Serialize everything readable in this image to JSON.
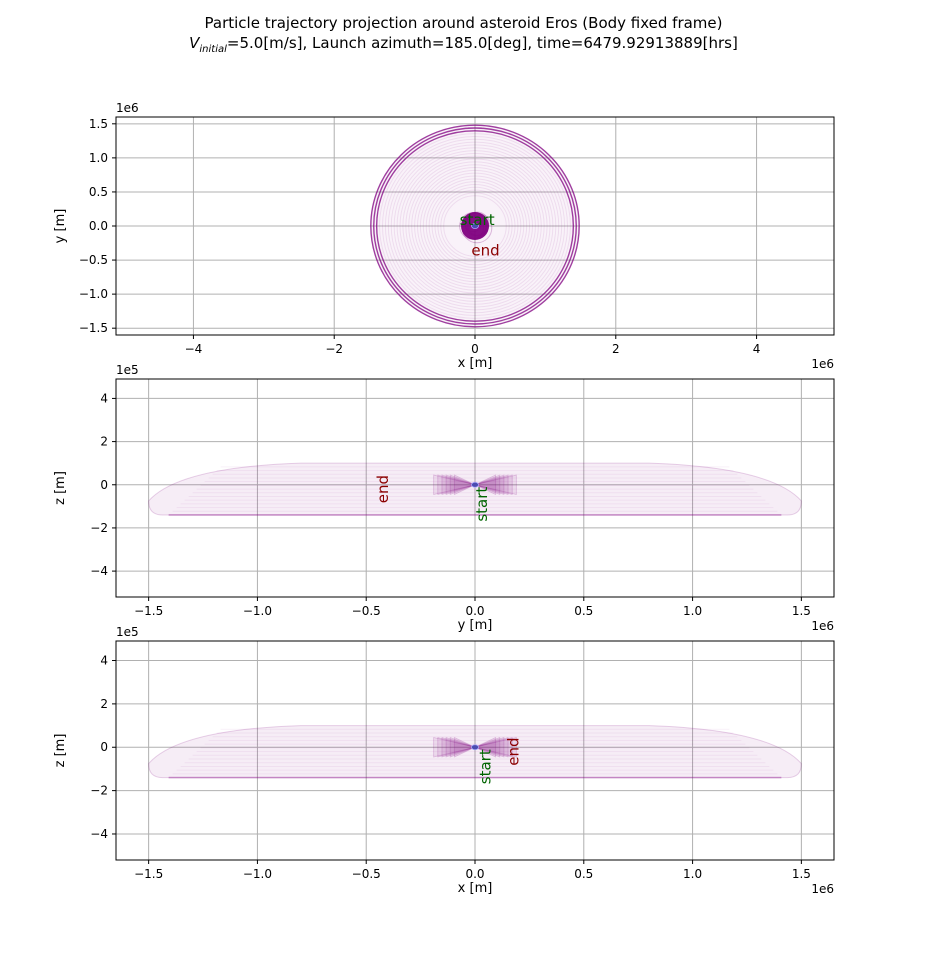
{
  "figure": {
    "title_line1": "Particle trajectory projection around asteroid Eros (Body fixed frame)",
    "title_v_symbol": "V",
    "title_v_subscript": "initial",
    "title_line2_rest": "=5.0[m/s], Launch azimuth=185.0[deg], time=6479.92913889[hrs]"
  },
  "chart_data": [
    {
      "type": "line",
      "projection": "x-y",
      "xlabel": "x [m]",
      "ylabel": "y [m]",
      "xlim": [
        -5100000.0,
        5100000.0
      ],
      "ylim": [
        -1600000.0,
        1600000.0
      ],
      "xticks": [
        -4000000.0,
        -2000000.0,
        0,
        2000000.0,
        4000000.0
      ],
      "xtick_labels": [
        "−4",
        "−2",
        "0",
        "2",
        "4"
      ],
      "yticks": [
        -1500000.0,
        -1000000.0,
        -500000.0,
        0,
        500000.0,
        1000000.0,
        1500000.0
      ],
      "ytick_labels": [
        "−1.5",
        "−1.0",
        "−0.5",
        "0.0",
        "0.5",
        "1.0",
        "1.5"
      ],
      "x_offset_label": "1e6",
      "y_offset_label": "1e6",
      "grid": true,
      "trajectory_outer_radius": 1480000.0,
      "trajectory_inner_radius": 200000.0,
      "annotations": [
        {
          "text": "start",
          "x": 30000.0,
          "y": 80000.0,
          "color": "#006400"
        },
        {
          "text": "end",
          "x": 150000.0,
          "y": -370000.0,
          "color": "#8b0000"
        }
      ]
    },
    {
      "type": "line",
      "projection": "y-z",
      "xlabel": "y [m]",
      "ylabel": "z [m]",
      "xlim": [
        -1650000.0,
        1650000.0
      ],
      "ylim": [
        -520000.0,
        490000.0
      ],
      "xticks": [
        -1500000.0,
        -1000000.0,
        -500000.0,
        0,
        500000.0,
        1000000.0,
        1500000.0
      ],
      "xtick_labels": [
        "−1.5",
        "−1.0",
        "−0.5",
        "0.0",
        "0.5",
        "1.0",
        "1.5"
      ],
      "yticks": [
        -400000.0,
        -200000.0,
        0,
        200000.0,
        400000.0
      ],
      "ytick_labels": [
        "−4",
        "−2",
        "0",
        "2",
        "4"
      ],
      "x_offset_label": "1e6",
      "y_offset_label": "1e5",
      "grid": true,
      "trajectory_extent": {
        "x": [
          -1500000.0,
          1500000.0
        ],
        "z": [
          -140000.0,
          100000.0
        ]
      },
      "annotations": [
        {
          "text": "end",
          "x": -420000.0,
          "y": -20000.0,
          "color": "#8b0000",
          "rotation": -90
        },
        {
          "text": "start",
          "x": 35000.0,
          "y": -90000.0,
          "color": "#006400",
          "rotation": -90
        }
      ]
    },
    {
      "type": "line",
      "projection": "x-z",
      "xlabel": "x [m]",
      "ylabel": "z [m]",
      "xlim": [
        -1650000.0,
        1650000.0
      ],
      "ylim": [
        -520000.0,
        490000.0
      ],
      "xticks": [
        -1500000.0,
        -1000000.0,
        -500000.0,
        0,
        500000.0,
        1000000.0,
        1500000.0
      ],
      "xtick_labels": [
        "−1.5",
        "−1.0",
        "−0.5",
        "0.0",
        "0.5",
        "1.0",
        "1.5"
      ],
      "yticks": [
        -400000.0,
        -200000.0,
        0,
        200000.0,
        400000.0
      ],
      "ytick_labels": [
        "−4",
        "−2",
        "0",
        "2",
        "4"
      ],
      "x_offset_label": "1e6",
      "y_offset_label": "1e5",
      "grid": true,
      "trajectory_extent": {
        "x": [
          -1500000.0,
          1500000.0
        ],
        "z": [
          -140000.0,
          100000.0
        ]
      },
      "annotations": [
        {
          "text": "start",
          "x": 50000.0,
          "y": -90000.0,
          "color": "#006400",
          "rotation": -90
        },
        {
          "text": "end",
          "x": 180000.0,
          "y": -20000.0,
          "color": "#8b0000",
          "rotation": -90
        }
      ]
    }
  ],
  "colors": {
    "trajectory": "#800080",
    "grid": "#b0b0b0",
    "start": "#006400",
    "end": "#8b0000",
    "asteroid": "#4b4bb0"
  }
}
